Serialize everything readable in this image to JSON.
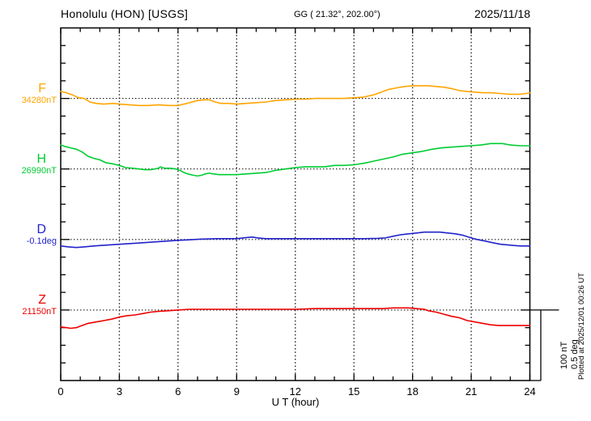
{
  "header": {
    "station": "Honolulu (HON)  [USGS]",
    "coords": "GG ( 21.32°, 202.00°)",
    "date": "2025/11/18"
  },
  "footer": {
    "xlabel": "U T (hour)"
  },
  "annotations": {
    "plotted_at": "Plotted at 2025/12/01 00:26 UT"
  },
  "chart_data": {
    "type": "line",
    "title": "Honolulu (HON) [USGS] magnetogram 2025/11/18",
    "xlabel": "U T (hour)",
    "x_range": [
      0,
      24
    ],
    "x_major_ticks": [
      0,
      3,
      6,
      9,
      12,
      15,
      18,
      21,
      24
    ],
    "grid_hours": [
      3,
      6,
      9,
      12,
      15,
      18,
      21
    ],
    "grid": "dotted-vertical-every-3h-and-dotted-baseline-per-trace",
    "legend_position": "left-of-axis",
    "scale_bar": {
      "nT_label": "100 nT",
      "deg_label": "0.5 deg",
      "nT_value": 100,
      "deg_value": 0.5
    },
    "series": [
      {
        "name": "F",
        "unit": "nT",
        "baseline_value": "34280nT",
        "color": "#FFA500",
        "points": [
          [
            0,
            10
          ],
          [
            0.3,
            8
          ],
          [
            0.6,
            5
          ],
          [
            0.9,
            1
          ],
          [
            1.2,
            0
          ],
          [
            1.5,
            -5
          ],
          [
            1.8,
            -7
          ],
          [
            2.2,
            -8
          ],
          [
            2.7,
            -7
          ],
          [
            3,
            -8
          ],
          [
            3.5,
            -9
          ],
          [
            4,
            -10
          ],
          [
            4.5,
            -10
          ],
          [
            5,
            -9
          ],
          [
            5.5,
            -10
          ],
          [
            6,
            -10
          ],
          [
            6.3,
            -8
          ],
          [
            6.6,
            -6
          ],
          [
            7,
            -3
          ],
          [
            7.3,
            -2
          ],
          [
            7.6,
            -2
          ],
          [
            7.9,
            -5
          ],
          [
            8.2,
            -7
          ],
          [
            8.6,
            -7
          ],
          [
            9,
            -8
          ],
          [
            9.5,
            -7
          ],
          [
            10,
            -6
          ],
          [
            10.5,
            -5
          ],
          [
            11,
            -3
          ],
          [
            11.5,
            -2
          ],
          [
            12,
            -1
          ],
          [
            12.5,
            -1
          ],
          [
            13,
            0
          ],
          [
            13.5,
            0
          ],
          [
            14,
            0
          ],
          [
            14.5,
            0
          ],
          [
            15,
            1
          ],
          [
            15.5,
            2
          ],
          [
            16,
            5
          ],
          [
            16.4,
            9
          ],
          [
            16.8,
            13
          ],
          [
            17.2,
            15
          ],
          [
            17.6,
            17
          ],
          [
            18,
            18
          ],
          [
            18.4,
            18
          ],
          [
            18.8,
            18
          ],
          [
            19.2,
            17
          ],
          [
            19.6,
            16
          ],
          [
            20,
            14
          ],
          [
            20.4,
            11
          ],
          [
            20.8,
            10
          ],
          [
            21.2,
            9
          ],
          [
            21.6,
            8
          ],
          [
            22,
            8
          ],
          [
            22.5,
            7
          ],
          [
            23,
            6
          ],
          [
            23.5,
            6
          ],
          [
            23.8,
            7
          ],
          [
            24,
            8
          ]
        ]
      },
      {
        "name": "H",
        "unit": "nT",
        "baseline_value": "26990nT",
        "color": "#00CC33",
        "points": [
          [
            0,
            34
          ],
          [
            0.2,
            32
          ],
          [
            0.5,
            30
          ],
          [
            0.8,
            28
          ],
          [
            1.1,
            24
          ],
          [
            1.4,
            18
          ],
          [
            1.7,
            15
          ],
          [
            2,
            13
          ],
          [
            2.3,
            9
          ],
          [
            2.7,
            7
          ],
          [
            3,
            5
          ],
          [
            3.3,
            2
          ],
          [
            3.7,
            1
          ],
          [
            4,
            0
          ],
          [
            4.3,
            -1
          ],
          [
            4.6,
            -1
          ],
          [
            5,
            1
          ],
          [
            5.1,
            3
          ],
          [
            5.3,
            1
          ],
          [
            5.6,
            1
          ],
          [
            5.9,
            0
          ],
          [
            6.1,
            -2
          ],
          [
            6.3,
            -5
          ],
          [
            6.5,
            -7
          ],
          [
            6.8,
            -9
          ],
          [
            7,
            -10
          ],
          [
            7.2,
            -9
          ],
          [
            7.4,
            -7
          ],
          [
            7.6,
            -6
          ],
          [
            7.8,
            -7
          ],
          [
            8.1,
            -8
          ],
          [
            8.5,
            -8
          ],
          [
            9,
            -8
          ],
          [
            9.5,
            -7
          ],
          [
            10,
            -6
          ],
          [
            10.5,
            -5
          ],
          [
            11,
            -2
          ],
          [
            11.5,
            0
          ],
          [
            12,
            2
          ],
          [
            12.5,
            3
          ],
          [
            13,
            3
          ],
          [
            13.5,
            3
          ],
          [
            14,
            5
          ],
          [
            14.5,
            5
          ],
          [
            15,
            6
          ],
          [
            15.5,
            8
          ],
          [
            16,
            11
          ],
          [
            16.5,
            14
          ],
          [
            17,
            17
          ],
          [
            17.5,
            21
          ],
          [
            18,
            23
          ],
          [
            18.5,
            25
          ],
          [
            19,
            28
          ],
          [
            19.5,
            30
          ],
          [
            20,
            31
          ],
          [
            20.5,
            32
          ],
          [
            21,
            33
          ],
          [
            21.5,
            34
          ],
          [
            22,
            36
          ],
          [
            22.3,
            36
          ],
          [
            22.6,
            36
          ],
          [
            23,
            34
          ],
          [
            23.5,
            33
          ],
          [
            24,
            33
          ]
        ]
      },
      {
        "name": "D",
        "unit": "deg",
        "baseline_value": "-0.1deg",
        "color": "#2222CC",
        "points": [
          [
            0,
            -0.046
          ],
          [
            0.4,
            -0.052
          ],
          [
            0.8,
            -0.057
          ],
          [
            1.2,
            -0.052
          ],
          [
            1.7,
            -0.046
          ],
          [
            2.3,
            -0.04
          ],
          [
            3,
            -0.034
          ],
          [
            3.5,
            -0.029
          ],
          [
            4.2,
            -0.023
          ],
          [
            4.8,
            -0.017
          ],
          [
            5.5,
            -0.011
          ],
          [
            6,
            -0.006
          ],
          [
            6.5,
            -0.003
          ],
          [
            7.2,
            0.003
          ],
          [
            8,
            0.006
          ],
          [
            9,
            0.006
          ],
          [
            9.5,
            0.014
          ],
          [
            9.8,
            0.017
          ],
          [
            10.1,
            0.011
          ],
          [
            10.5,
            0.006
          ],
          [
            11.5,
            0.006
          ],
          [
            12.5,
            0.006
          ],
          [
            13.5,
            0.006
          ],
          [
            14.5,
            0.006
          ],
          [
            15.5,
            0.006
          ],
          [
            16.2,
            0.008
          ],
          [
            16.6,
            0.011
          ],
          [
            17,
            0.023
          ],
          [
            17.4,
            0.034
          ],
          [
            17.8,
            0.04
          ],
          [
            18.2,
            0.046
          ],
          [
            18.6,
            0.052
          ],
          [
            19,
            0.052
          ],
          [
            19.4,
            0.052
          ],
          [
            19.8,
            0.046
          ],
          [
            20.2,
            0.04
          ],
          [
            20.6,
            0.029
          ],
          [
            21,
            0.011
          ],
          [
            21.3,
            0
          ],
          [
            21.7,
            -0.011
          ],
          [
            22.1,
            -0.023
          ],
          [
            22.5,
            -0.034
          ],
          [
            23,
            -0.04
          ],
          [
            23.5,
            -0.046
          ],
          [
            24,
            -0.046
          ]
        ]
      },
      {
        "name": "Z",
        "unit": "nT",
        "baseline_value": "21150nT",
        "color": "#EE0000",
        "points": [
          [
            0,
            -24
          ],
          [
            0.3,
            -25
          ],
          [
            0.5,
            -26
          ],
          [
            0.8,
            -25
          ],
          [
            1,
            -23
          ],
          [
            1.4,
            -19
          ],
          [
            1.8,
            -17
          ],
          [
            2.2,
            -15
          ],
          [
            2.6,
            -13
          ],
          [
            3,
            -10
          ],
          [
            3.4,
            -8
          ],
          [
            3.8,
            -7
          ],
          [
            4.2,
            -5
          ],
          [
            4.6,
            -3
          ],
          [
            5,
            -2
          ],
          [
            5.5,
            -1
          ],
          [
            6,
            0
          ],
          [
            6.6,
            1
          ],
          [
            7,
            1
          ],
          [
            8,
            1
          ],
          [
            9,
            1
          ],
          [
            10,
            1
          ],
          [
            11,
            1
          ],
          [
            12,
            1
          ],
          [
            13,
            2
          ],
          [
            14,
            2
          ],
          [
            15,
            2
          ],
          [
            16,
            2
          ],
          [
            16.5,
            2
          ],
          [
            17,
            3
          ],
          [
            17.4,
            3
          ],
          [
            17.8,
            3
          ],
          [
            18.2,
            2
          ],
          [
            18.6,
            1
          ],
          [
            18.8,
            -1
          ],
          [
            19.2,
            -3
          ],
          [
            19.6,
            -6
          ],
          [
            20,
            -9
          ],
          [
            20.4,
            -11
          ],
          [
            20.8,
            -15
          ],
          [
            21.2,
            -17
          ],
          [
            21.6,
            -19
          ],
          [
            22,
            -21
          ],
          [
            22.4,
            -22
          ],
          [
            22.8,
            -22
          ],
          [
            23.2,
            -22
          ],
          [
            23.6,
            -22
          ],
          [
            24,
            -22
          ]
        ]
      }
    ]
  }
}
